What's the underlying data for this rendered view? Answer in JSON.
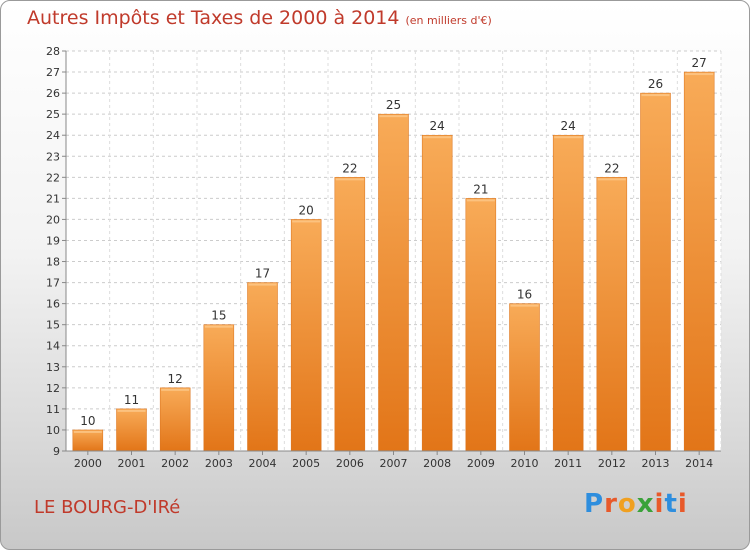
{
  "header": {
    "title": "Autres Impôts et Taxes de 2000 à 2014",
    "unit": "(en milliers d'€)"
  },
  "footer": {
    "commune": "LE BOURG-D'IRé",
    "brand_letters": [
      "P",
      "r",
      "o",
      "x",
      "i",
      "t",
      "i"
    ],
    "brand_colors": [
      "#2e8ede",
      "#e8592a",
      "#f0a020",
      "#3aa23a",
      "#e8592a",
      "#2e8ede",
      "#e8592a"
    ]
  },
  "chart_data": {
    "type": "bar",
    "categories": [
      "2000",
      "2001",
      "2002",
      "2003",
      "2004",
      "2005",
      "2006",
      "2007",
      "2008",
      "2009",
      "2010",
      "2011",
      "2012",
      "2013",
      "2014"
    ],
    "values": [
      10,
      11,
      12,
      15,
      17,
      20,
      22,
      25,
      24,
      21,
      16,
      24,
      22,
      26,
      27
    ],
    "title": "Autres Impôts et Taxes de 2000 à 2014",
    "subtitle": "(en milliers d'€)",
    "ylim": [
      9,
      28
    ],
    "yticks": [
      9,
      10,
      11,
      12,
      13,
      14,
      15,
      16,
      17,
      18,
      19,
      20,
      21,
      22,
      23,
      24,
      25,
      26,
      27,
      28
    ],
    "grid": true,
    "bar_color": "#f08a2c",
    "bar_highlight": "#f8b060"
  }
}
